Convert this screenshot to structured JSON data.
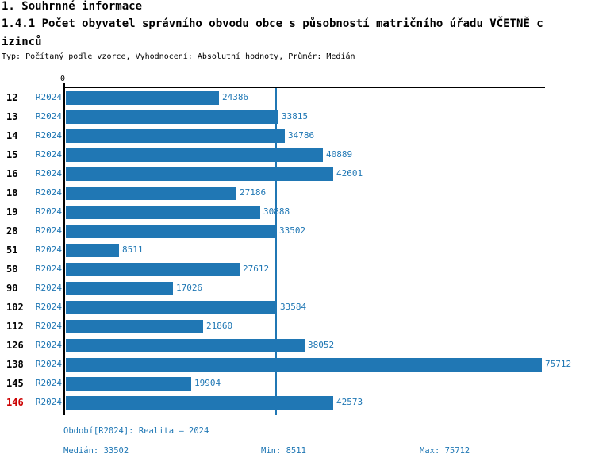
{
  "header": {
    "title": "1. Souhrnné informace",
    "subtitle_line1": "1.4.1 Počet obyvatel správního obvodu obce s působností matričního úřadu VČETNĚ c",
    "subtitle_line2": "izinců",
    "meta": "Typ: Počítaný podle vzorce, Vyhodnocení: Absolutní hodnoty, Průměr: Medián"
  },
  "chart_data": {
    "type": "bar",
    "orientation": "horizontal",
    "title": "1.4.1 Počet obyvatel správního obvodu obce s působností matričního úřadu VČETNĚ cizinců",
    "axis_zero_label": "0",
    "xlim": [
      0,
      76500
    ],
    "legend_position": "none",
    "grid": false,
    "median_value": 33502,
    "categories": [
      "12",
      "13",
      "14",
      "15",
      "16",
      "18",
      "19",
      "28",
      "51",
      "58",
      "90",
      "102",
      "112",
      "126",
      "138",
      "145",
      "146"
    ],
    "series": [
      {
        "name": "R2024",
        "values": [
          24386,
          33815,
          34786,
          40889,
          42601,
          27186,
          30888,
          33502,
          8511,
          27612,
          17026,
          33584,
          21860,
          38052,
          75712,
          19904,
          42573
        ]
      }
    ],
    "highlighted_category": "146",
    "colors": {
      "bar": "#2077b4",
      "value_label": "#1f77b4",
      "series_label": "#1f77b4",
      "category_label": "#000000",
      "highlighted_category_label": "#cc0000",
      "axis": "#000000",
      "median_line": "#2077b4"
    }
  },
  "footer": {
    "period": "Období[R2024]: Realita – 2024",
    "median": "Medián: 33502",
    "min": "Min: 8511",
    "max": "Max: 75712"
  }
}
